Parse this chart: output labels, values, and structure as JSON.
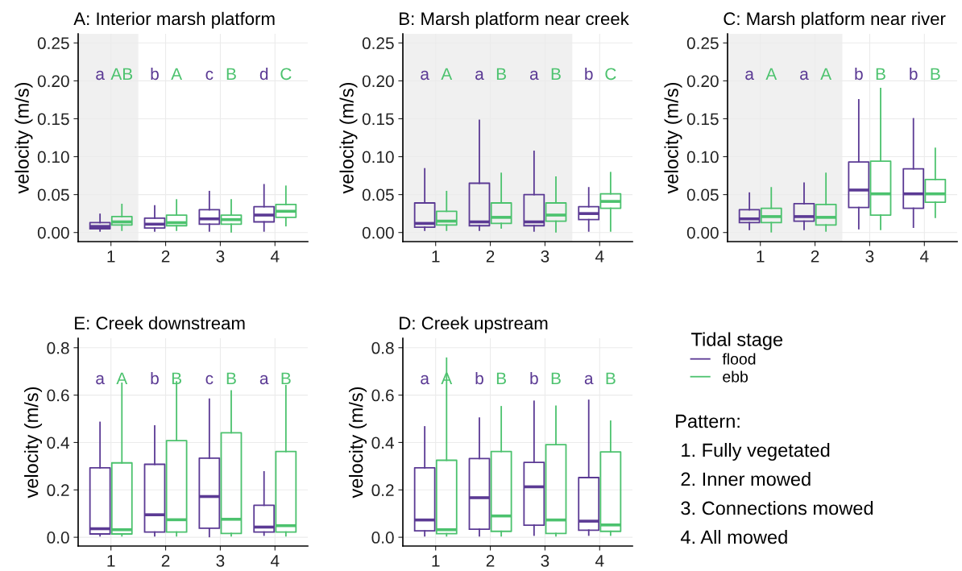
{
  "chart_data": [
    {
      "type": "box",
      "title": "A: Interior marsh platform",
      "ylabel": "velocity (m/s)",
      "x": [
        1,
        2,
        3,
        4
      ],
      "xlim": [
        0.4,
        4.6
      ],
      "xticks": [
        1,
        2,
        3,
        4
      ],
      "ylim": [
        -0.012,
        0.262
      ],
      "yticks": [
        {
          "value": 0,
          "label": "0.00"
        },
        {
          "value": 0.05,
          "label": "0.05"
        },
        {
          "value": 0.1,
          "label": "0.10"
        },
        {
          "value": 0.15,
          "label": "0.15"
        },
        {
          "value": 0.2,
          "label": "0.20"
        },
        {
          "value": 0.25,
          "label": "0.25"
        }
      ],
      "grid": true,
      "bands": [
        {
          "axis": "x",
          "from": 0.4,
          "to": 1.5,
          "color": "#f0f0f0"
        }
      ],
      "legend": "right",
      "legend_title": "Tidal stage",
      "series": [
        {
          "name": "flood",
          "color": "#5b3a94",
          "value_labels": [
            "a",
            "b",
            "c",
            "d"
          ],
          "boxes": [
            {
              "low": 0.002,
              "q1": 0.005,
              "median": 0.008,
              "q3": 0.013,
              "high": 0.024
            },
            {
              "low": 0.002,
              "q1": 0.006,
              "median": 0.011,
              "q3": 0.019,
              "high": 0.035
            },
            {
              "low": 0.002,
              "q1": 0.011,
              "median": 0.018,
              "q3": 0.03,
              "high": 0.054
            },
            {
              "low": 0.002,
              "q1": 0.014,
              "median": 0.023,
              "q3": 0.034,
              "high": 0.063
            }
          ]
        },
        {
          "name": "ebb",
          "color": "#4cc26e",
          "value_labels": [
            "AB",
            "A",
            "B",
            "C"
          ],
          "boxes": [
            {
              "low": 0.003,
              "q1": 0.01,
              "median": 0.014,
              "q3": 0.021,
              "high": 0.037
            },
            {
              "low": 0.003,
              "q1": 0.009,
              "median": 0.013,
              "q3": 0.023,
              "high": 0.043
            },
            {
              "low": 0.001,
              "q1": 0.011,
              "median": 0.017,
              "q3": 0.023,
              "high": 0.043
            },
            {
              "low": 0.009,
              "q1": 0.02,
              "median": 0.028,
              "q3": 0.037,
              "high": 0.061
            }
          ]
        }
      ]
    },
    {
      "type": "box",
      "title": "B: Marsh platform near creek",
      "ylabel": "velocity (m/s)",
      "x": [
        1,
        2,
        3,
        4
      ],
      "xlim": [
        0.4,
        4.6
      ],
      "xticks": [
        1,
        2,
        3,
        4
      ],
      "ylim": [
        -0.012,
        0.262
      ],
      "yticks": [
        {
          "value": 0,
          "label": "0.00"
        },
        {
          "value": 0.05,
          "label": "0.05"
        },
        {
          "value": 0.1,
          "label": "0.10"
        },
        {
          "value": 0.15,
          "label": "0.15"
        },
        {
          "value": 0.2,
          "label": "0.20"
        },
        {
          "value": 0.25,
          "label": "0.25"
        }
      ],
      "grid": true,
      "bands": [
        {
          "axis": "x",
          "from": 0.4,
          "to": 3.5,
          "color": "#f0f0f0"
        }
      ],
      "series": [
        {
          "color": "#5b3a94",
          "value_labels": [
            "a",
            "a",
            "a",
            "b"
          ],
          "boxes": [
            {
              "low": 0.003,
              "q1": 0.007,
              "median": 0.012,
              "q3": 0.039,
              "high": 0.084
            },
            {
              "low": 0.003,
              "q1": 0.009,
              "median": 0.014,
              "q3": 0.065,
              "high": 0.148
            },
            {
              "low": 0.002,
              "q1": 0.009,
              "median": 0.014,
              "q3": 0.05,
              "high": 0.107
            },
            {
              "low": 0.002,
              "q1": 0.017,
              "median": 0.025,
              "q3": 0.034,
              "high": 0.059
            }
          ]
        },
        {
          "color": "#4cc26e",
          "value_labels": [
            "A",
            "B",
            "B",
            "C"
          ],
          "boxes": [
            {
              "low": 0.003,
              "q1": 0.01,
              "median": 0.015,
              "q3": 0.028,
              "high": 0.054
            },
            {
              "low": 0.006,
              "q1": 0.012,
              "median": 0.02,
              "q3": 0.039,
              "high": 0.078
            },
            {
              "low": 0.001,
              "q1": 0.015,
              "median": 0.023,
              "q3": 0.039,
              "high": 0.073
            },
            {
              "low": 0.002,
              "q1": 0.032,
              "median": 0.041,
              "q3": 0.051,
              "high": 0.079
            }
          ]
        }
      ]
    },
    {
      "type": "box",
      "title": "C: Marsh platform near river",
      "ylabel": "velocity (m/s)",
      "x": [
        1,
        2,
        3,
        4
      ],
      "xlim": [
        0.4,
        4.6
      ],
      "xticks": [
        1,
        2,
        3,
        4
      ],
      "ylim": [
        -0.012,
        0.262
      ],
      "yticks": [
        {
          "value": 0,
          "label": "0.00"
        },
        {
          "value": 0.05,
          "label": "0.05"
        },
        {
          "value": 0.1,
          "label": "0.10"
        },
        {
          "value": 0.15,
          "label": "0.15"
        },
        {
          "value": 0.2,
          "label": "0.20"
        },
        {
          "value": 0.25,
          "label": "0.25"
        }
      ],
      "grid": true,
      "bands": [
        {
          "axis": "x",
          "from": 0.4,
          "to": 2.5,
          "color": "#f0f0f0"
        }
      ],
      "series": [
        {
          "color": "#5b3a94",
          "value_labels": [
            "a",
            "a",
            "b",
            "b"
          ],
          "boxes": [
            {
              "low": 0.004,
              "q1": 0.013,
              "median": 0.018,
              "q3": 0.03,
              "high": 0.052
            },
            {
              "low": 0.004,
              "q1": 0.015,
              "median": 0.021,
              "q3": 0.038,
              "high": 0.065
            },
            {
              "low": 0.005,
              "q1": 0.033,
              "median": 0.056,
              "q3": 0.093,
              "high": 0.175
            },
            {
              "low": 0.007,
              "q1": 0.032,
              "median": 0.051,
              "q3": 0.084,
              "high": 0.15
            }
          ]
        },
        {
          "color": "#4cc26e",
          "value_labels": [
            "A",
            "A",
            "B",
            "B"
          ],
          "boxes": [
            {
              "low": 0.001,
              "q1": 0.013,
              "median": 0.021,
              "q3": 0.032,
              "high": 0.059
            },
            {
              "low": 0.002,
              "q1": 0.01,
              "median": 0.02,
              "q3": 0.037,
              "high": 0.078
            },
            {
              "low": 0.004,
              "q1": 0.023,
              "median": 0.051,
              "q3": 0.094,
              "high": 0.19
            },
            {
              "low": 0.02,
              "q1": 0.04,
              "median": 0.051,
              "q3": 0.07,
              "high": 0.111
            }
          ]
        }
      ]
    },
    {
      "type": "box",
      "title": "E: Creek downstream",
      "ylabel": "velocity (m/s)",
      "x": [
        1,
        2,
        3,
        4
      ],
      "xlim": [
        0.4,
        4.6
      ],
      "xticks": [
        1,
        2,
        3,
        4
      ],
      "ylim": [
        -0.037,
        0.84
      ],
      "yticks": [
        {
          "value": 0,
          "label": "0.0"
        },
        {
          "value": 0.2,
          "label": "0.2"
        },
        {
          "value": 0.4,
          "label": "0.4"
        },
        {
          "value": 0.6,
          "label": "0.6"
        },
        {
          "value": 0.8,
          "label": "0.8"
        }
      ],
      "grid": true,
      "series": [
        {
          "color": "#5b3a94",
          "value_labels": [
            "a",
            "b",
            "c",
            "a"
          ],
          "boxes": [
            {
              "low": 0.006,
              "q1": 0.014,
              "median": 0.036,
              "q3": 0.293,
              "high": 0.485
            },
            {
              "low": 0.006,
              "q1": 0.022,
              "median": 0.095,
              "q3": 0.308,
              "high": 0.47
            },
            {
              "low": 0.003,
              "q1": 0.038,
              "median": 0.172,
              "q3": 0.334,
              "high": 0.583
            },
            {
              "low": 0.009,
              "q1": 0.022,
              "median": 0.043,
              "q3": 0.135,
              "high": 0.276
            }
          ]
        },
        {
          "color": "#4cc26e",
          "value_labels": [
            "A",
            "B",
            "B",
            "B"
          ],
          "boxes": [
            {
              "low": 0.006,
              "q1": 0.014,
              "median": 0.032,
              "q3": 0.314,
              "high": 0.65
            },
            {
              "low": 0.006,
              "q1": 0.022,
              "median": 0.074,
              "q3": 0.408,
              "high": 0.656
            },
            {
              "low": 0.006,
              "q1": 0.016,
              "median": 0.076,
              "q3": 0.441,
              "high": 0.618
            },
            {
              "low": 0.006,
              "q1": 0.022,
              "median": 0.049,
              "q3": 0.362,
              "high": 0.64
            }
          ]
        }
      ]
    },
    {
      "type": "box",
      "title": "D: Creek upstream",
      "ylabel": "velocity (m/s)",
      "x": [
        1,
        2,
        3,
        4
      ],
      "xlim": [
        0.4,
        4.6
      ],
      "xticks": [
        1,
        2,
        3,
        4
      ],
      "ylim": [
        -0.037,
        0.84
      ],
      "yticks": [
        {
          "value": 0,
          "label": "0.0"
        },
        {
          "value": 0.2,
          "label": "0.2"
        },
        {
          "value": 0.4,
          "label": "0.4"
        },
        {
          "value": 0.6,
          "label": "0.6"
        },
        {
          "value": 0.8,
          "label": "0.8"
        }
      ],
      "grid": true,
      "series": [
        {
          "color": "#5b3a94",
          "value_labels": [
            "a",
            "b",
            "b",
            "a"
          ],
          "boxes": [
            {
              "low": 0.006,
              "q1": 0.027,
              "median": 0.073,
              "q3": 0.293,
              "high": 0.466
            },
            {
              "low": 0.006,
              "q1": 0.034,
              "median": 0.167,
              "q3": 0.332,
              "high": 0.503
            },
            {
              "low": 0.009,
              "q1": 0.051,
              "median": 0.213,
              "q3": 0.316,
              "high": 0.574
            },
            {
              "low": 0.009,
              "q1": 0.03,
              "median": 0.068,
              "q3": 0.252,
              "high": 0.578
            }
          ]
        },
        {
          "color": "#4cc26e",
          "value_labels": [
            "A",
            "B",
            "B",
            "B"
          ],
          "boxes": [
            {
              "low": 0.006,
              "q1": 0.015,
              "median": 0.032,
              "q3": 0.325,
              "high": 0.756
            },
            {
              "low": 0.006,
              "q1": 0.025,
              "median": 0.09,
              "q3": 0.362,
              "high": 0.551
            },
            {
              "low": 0.006,
              "q1": 0.016,
              "median": 0.073,
              "q3": 0.391,
              "high": 0.553
            },
            {
              "low": 0.009,
              "q1": 0.025,
              "median": 0.052,
              "q3": 0.36,
              "high": 0.49
            }
          ]
        }
      ]
    },
    {
      "type": "other",
      "title": "Pattern:",
      "annotations": [
        "1. Fully vegetated",
        "2. Inner mowed",
        "3. Connections mowed",
        "4. All mowed"
      ]
    }
  ]
}
